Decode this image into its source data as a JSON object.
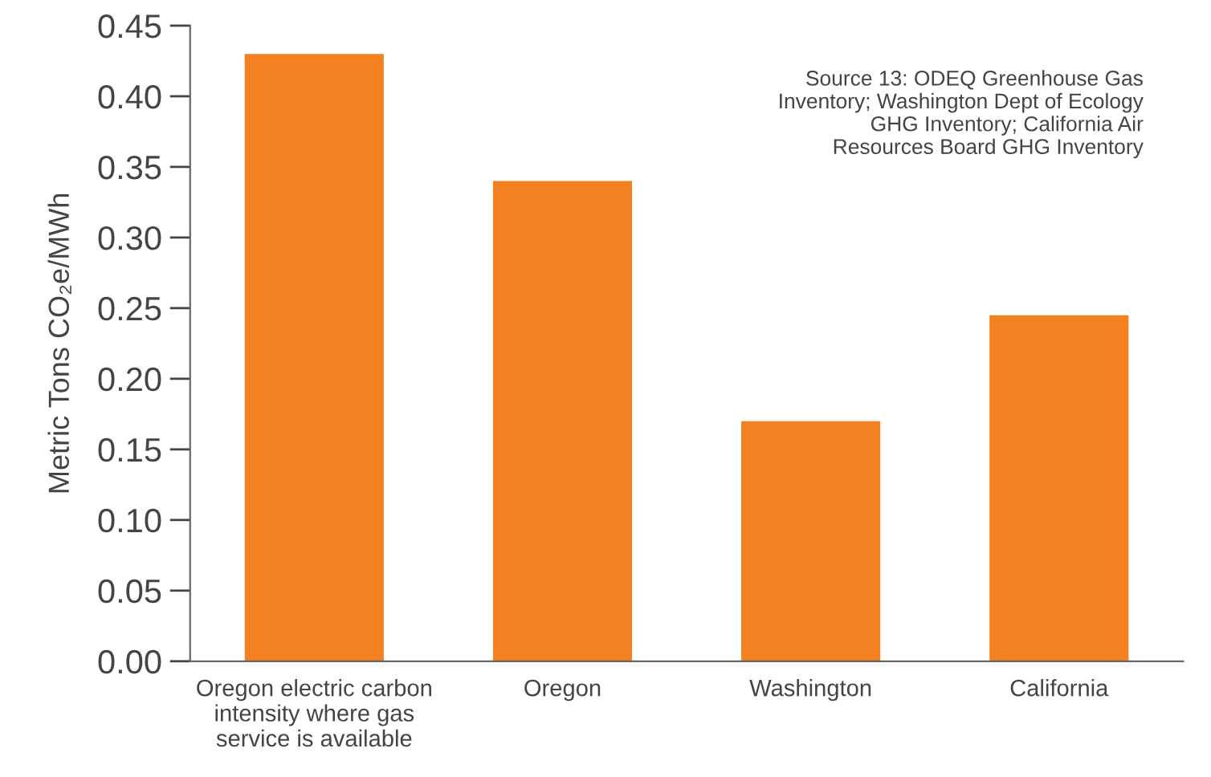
{
  "chart_data": {
    "type": "bar",
    "ylabel": "Metric Tons CO₂e/MWh",
    "categories": [
      "Oregon electric carbon\nintensity where gas\nservice is available",
      "Oregon",
      "Washington",
      "California"
    ],
    "values": [
      0.43,
      0.34,
      0.17,
      0.245
    ],
    "color": "#f38021",
    "ylim": [
      0,
      0.45
    ],
    "yticks": [
      {
        "value": 0,
        "label": "0.00"
      },
      {
        "value": 0.05,
        "label": "0.05"
      },
      {
        "value": 0.1,
        "label": "0.10"
      },
      {
        "value": 0.15,
        "label": "0.15"
      },
      {
        "value": 0.2,
        "label": "0.20"
      },
      {
        "value": 0.25,
        "label": "0.25"
      },
      {
        "value": 0.3,
        "label": "0.30"
      },
      {
        "value": 0.35,
        "label": "0.35"
      },
      {
        "value": 0.4,
        "label": "0.40"
      },
      {
        "value": 0.45,
        "label": "0.45"
      }
    ],
    "annotations": [
      "Source 13: ODEQ Greenhouse Gas\nInventory; Washington Dept of Ecology\nGHG Inventory; California Air\nResources Board GHG Inventory"
    ],
    "grid": false,
    "legend": false
  }
}
